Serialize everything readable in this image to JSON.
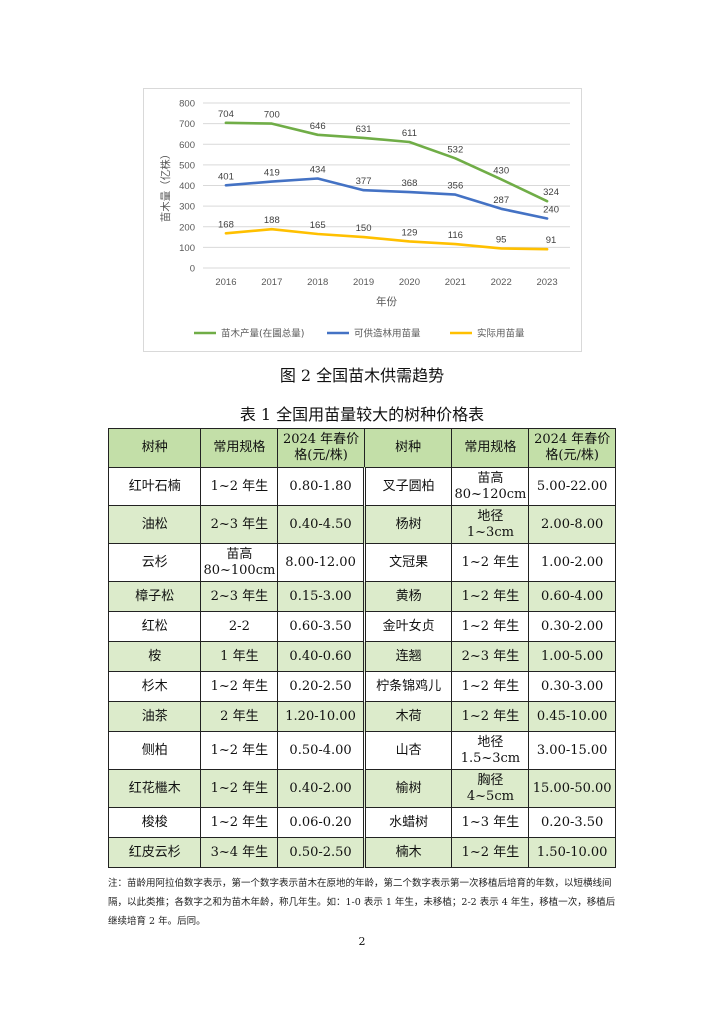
{
  "chart_data": {
    "type": "line",
    "title": "",
    "xlabel": "年份",
    "ylabel": "苗木量（亿株）",
    "ylim": [
      0,
      800
    ],
    "yticks": [
      0,
      100,
      200,
      300,
      400,
      500,
      600,
      700,
      800
    ],
    "x": [
      "2016",
      "2017",
      "2018",
      "2019",
      "2020",
      "2021",
      "2022",
      "2023"
    ],
    "grid": true,
    "legend_position": "bottom",
    "series": [
      {
        "name": "苗木产量(在圃总量)",
        "color": "#70ad47",
        "values": [
          704,
          700,
          646,
          631,
          611,
          532,
          430,
          324
        ]
      },
      {
        "name": "可供造林用苗量",
        "color": "#4472c4",
        "values": [
          401,
          419,
          434,
          377,
          368,
          356,
          287,
          240
        ]
      },
      {
        "name": "实际用苗量",
        "color": "#ffc000",
        "values": [
          168,
          188,
          165,
          150,
          129,
          116,
          95,
          91
        ]
      }
    ]
  },
  "figure_caption": "图 2  全国苗木供需趋势",
  "table_caption": "表 1  全国用苗量较大的树种价格表",
  "table": {
    "headers": [
      "树种",
      "常用规格",
      "2024 年春价格(元/株)",
      "树种",
      "常用规格",
      "2024 年春价格(元/株)"
    ],
    "rows": [
      [
        "红叶石楠",
        "1~2 年生",
        "0.80-1.80",
        "叉子圆柏",
        "苗高 80~120cm",
        "5.00-22.00"
      ],
      [
        "油松",
        "2~3 年生",
        "0.40-4.50",
        "杨树",
        "地径 1~3cm",
        "2.00-8.00"
      ],
      [
        "云杉",
        "苗高 80~100cm",
        "8.00-12.00",
        "文冠果",
        "1~2 年生",
        "1.00-2.00"
      ],
      [
        "樟子松",
        "2~3 年生",
        "0.15-3.00",
        "黄杨",
        "1~2 年生",
        "0.60-4.00"
      ],
      [
        "红松",
        "2-2",
        "0.60-3.50",
        "金叶女贞",
        "1~2 年生",
        "0.30-2.00"
      ],
      [
        "桉",
        "1 年生",
        "0.40-0.60",
        "连翘",
        "2~3 年生",
        "1.00-5.00"
      ],
      [
        "杉木",
        "1~2 年生",
        "0.20-2.50",
        "柠条锦鸡儿",
        "1~2 年生",
        "0.30-3.00"
      ],
      [
        "油茶",
        "2 年生",
        "1.20-10.00",
        "木荷",
        "1~2 年生",
        "0.45-10.00"
      ],
      [
        "侧柏",
        "1~2 年生",
        "0.50-4.00",
        "山杏",
        "地径 1.5~3cm",
        "3.00-15.00"
      ],
      [
        "红花檵木",
        "1~2 年生",
        "0.40-2.00",
        "榆树",
        "胸径 4~5cm",
        "15.00-50.00"
      ],
      [
        "梭梭",
        "1~2 年生",
        "0.06-0.20",
        "水蜡树",
        "1~3 年生",
        "0.20-3.50"
      ],
      [
        "红皮云杉",
        "3~4 年生",
        "0.50-2.50",
        "楠木",
        "1~2 年生",
        "1.50-10.00"
      ]
    ]
  },
  "note": "注：苗龄用阿拉伯数字表示，第一个数字表示苗木在原地的年龄，第二个数字表示第一次移植后培育的年数，以短横线间隔，以此类推；各数字之和为苗木年龄，称几年生。如：1-0 表示 1 年生，未移植；2-2 表示 4 年生，移植一次，移植后继续培育 2 年。后同。",
  "page_number": "2"
}
